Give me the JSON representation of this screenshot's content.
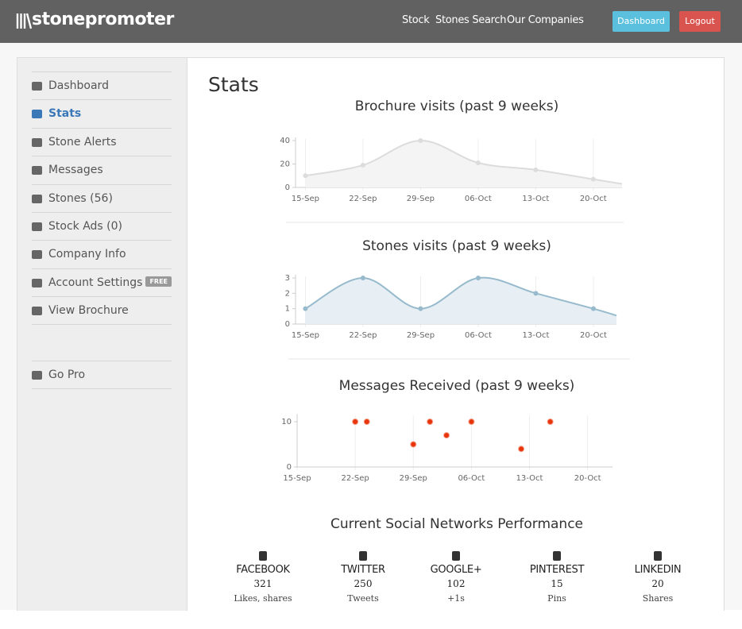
{
  "header": {
    "logo": "stonepromoter",
    "nav": [
      "Stock",
      "Stones Search",
      "Our Companies"
    ],
    "buttons": [
      "Dashboard",
      "Logout"
    ]
  },
  "sidebar": {
    "items": [
      {
        "label": "Dashboard"
      },
      {
        "label": "Stats",
        "active": true
      },
      {
        "label": "Stone Alerts"
      },
      {
        "label": "Messages"
      },
      {
        "label": "Stones (56)"
      },
      {
        "label": "Stock Ads (0)"
      },
      {
        "label": "Company Info"
      },
      {
        "label": "Account Settings",
        "badge": "FREE"
      },
      {
        "label": "View Brochure"
      }
    ],
    "extra": [
      {
        "label": "Go Pro"
      }
    ]
  },
  "main": {
    "heading": "Stats"
  },
  "chart_data": [
    {
      "type": "area",
      "title": "Brochure visits (past 9 weeks)",
      "x": [
        0,
        7,
        14,
        21,
        28,
        35,
        38.5
      ],
      "values": [
        10,
        19,
        40,
        21,
        15,
        7,
        3
      ],
      "xlim": [
        -1.2,
        38.5
      ],
      "xticks": [
        {
          "value": 0,
          "label": "15-Sep"
        },
        {
          "value": 7,
          "label": "22-Sep"
        },
        {
          "value": 14,
          "label": "29-Sep"
        },
        {
          "value": 21,
          "label": "06-Oct"
        },
        {
          "value": 28,
          "label": "13-Oct"
        },
        {
          "value": 35,
          "label": "20-Oct"
        }
      ],
      "ylim": [
        0,
        40
      ],
      "yticks": [
        0,
        20,
        40
      ],
      "color": "#dcdcdc",
      "fill": "#f4f4f4"
    },
    {
      "type": "area",
      "title": "Stones visits (past 9 weeks)",
      "x": [
        0,
        7,
        14,
        21,
        28,
        35,
        37.8
      ],
      "values": [
        1,
        3,
        1,
        3,
        2,
        1,
        0.55
      ],
      "xlim": [
        -1.2,
        37.8
      ],
      "xticks": [
        {
          "value": 0,
          "label": "15-Sep"
        },
        {
          "value": 7,
          "label": "22-Sep"
        },
        {
          "value": 14,
          "label": "29-Sep"
        },
        {
          "value": 21,
          "label": "06-Oct"
        },
        {
          "value": 28,
          "label": "13-Oct"
        },
        {
          "value": 35,
          "label": "20-Oct"
        }
      ],
      "ylim": [
        0,
        3
      ],
      "yticks": [
        0,
        1,
        2,
        3
      ],
      "color": "#97bbcd",
      "fill": "#e7eff4"
    },
    {
      "type": "scatter",
      "title": "Messages Received (past 9 weeks)",
      "x": [
        7,
        8.4,
        14,
        16,
        18,
        21,
        27,
        30.5
      ],
      "values": [
        10,
        10,
        5,
        10,
        7,
        10,
        4,
        10
      ],
      "xlim": [
        0,
        38
      ],
      "xticks": [
        {
          "value": 0,
          "label": "15-Sep"
        },
        {
          "value": 7,
          "label": "22-Sep"
        },
        {
          "value": 14,
          "label": "29-Sep"
        },
        {
          "value": 21,
          "label": "06-Oct"
        },
        {
          "value": 28,
          "label": "13-Oct"
        },
        {
          "value": 35,
          "label": "20-Oct"
        }
      ],
      "ylim": [
        0,
        11
      ],
      "yticks": [
        0,
        10
      ],
      "color": "#e8350c"
    }
  ],
  "social": {
    "title": "Current Social Networks Performance",
    "networks": [
      {
        "name": "FACEBOOK",
        "count": 321,
        "caption": "Likes, shares"
      },
      {
        "name": "TWITTER",
        "count": 250,
        "caption": "Tweets"
      },
      {
        "name": "GOOGLE+",
        "count": 102,
        "caption": "+1s"
      },
      {
        "name": "PINTEREST",
        "count": 15,
        "caption": "Pins"
      },
      {
        "name": "LINKEDIN",
        "count": 20,
        "caption": "Shares"
      }
    ]
  }
}
